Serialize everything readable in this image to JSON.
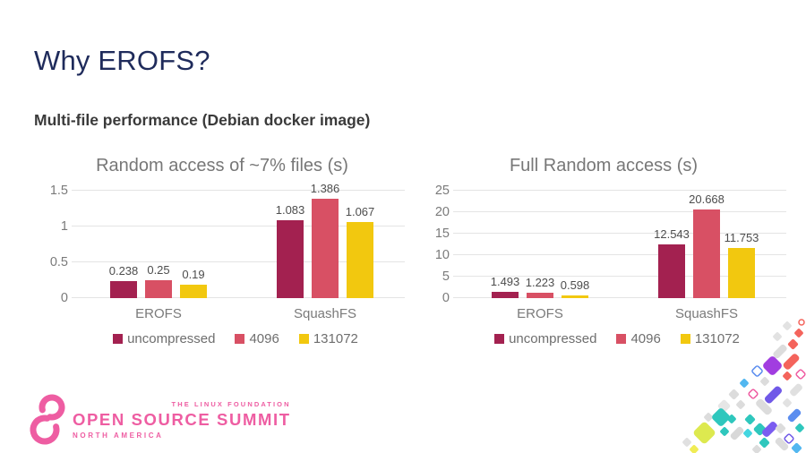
{
  "slide": {
    "title": "Why EROFS?",
    "subtitle": "Multi-file performance (Debian docker image)"
  },
  "colors": {
    "title_navy": "#1f2b5b",
    "subtitle_gray": "#3a3a3a",
    "chart_text_gray": "#777777",
    "value_label_gray": "#4d4d4d",
    "gridline_gray": "#e4e4e4",
    "series_uncompressed": "#a32150",
    "series_4096": "#d85064",
    "series_131072": "#f2c80f",
    "brand_pink": "#ee5da2"
  },
  "chart_data": [
    {
      "type": "bar",
      "title": "Random access of ~7% files (s)",
      "categories": [
        "EROFS",
        "SquashFS"
      ],
      "series": [
        {
          "name": "uncompressed",
          "color": "#a32150",
          "values": [
            0.238,
            1.083
          ],
          "labels": [
            "0.238",
            "1.083"
          ]
        },
        {
          "name": "4096",
          "color": "#d85064",
          "values": [
            0.25,
            1.386
          ],
          "labels": [
            "0.25",
            "1.386"
          ]
        },
        {
          "name": "131072",
          "color": "#f2c80f",
          "values": [
            0.19,
            1.067
          ],
          "labels": [
            "0.19",
            "1.067"
          ]
        }
      ],
      "yticks": [
        "0",
        "0.5",
        "1",
        "1.5"
      ],
      "ylim": [
        0,
        1.5
      ],
      "grid": true,
      "legend_position": "bottom"
    },
    {
      "type": "bar",
      "title": "Full Random access (s)",
      "categories": [
        "EROFS",
        "SquashFS"
      ],
      "series": [
        {
          "name": "uncompressed",
          "color": "#a32150",
          "values": [
            1.493,
            12.543
          ],
          "labels": [
            "1.493",
            "12.543"
          ]
        },
        {
          "name": "4096",
          "color": "#d85064",
          "values": [
            1.223,
            20.668
          ],
          "labels": [
            "1.223",
            "20.668"
          ]
        },
        {
          "name": "131072",
          "color": "#f2c80f",
          "values": [
            0.598,
            11.753
          ],
          "labels": [
            "0.598",
            "11.753"
          ]
        }
      ],
      "yticks": [
        "0",
        "5",
        "10",
        "15",
        "20",
        "25"
      ],
      "ylim": [
        0,
        25
      ],
      "grid": true,
      "legend_position": "bottom"
    }
  ],
  "logo": {
    "foundation": "THE LINUX FOUNDATION",
    "name": "OPEN SOURCE SUMMIT",
    "region": "NORTH AMERICA"
  }
}
